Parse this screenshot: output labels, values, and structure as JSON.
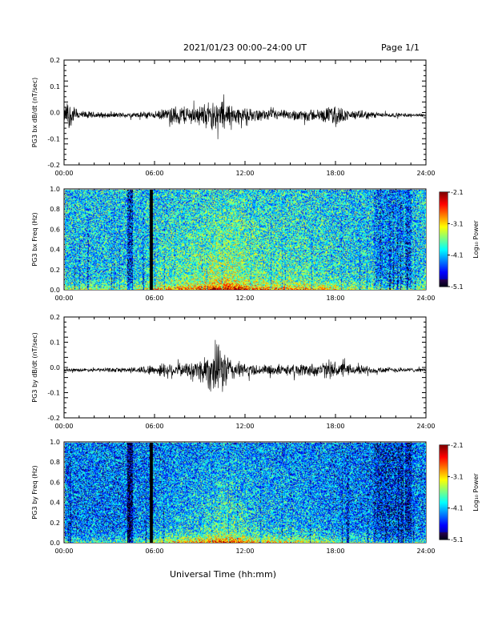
{
  "header": {
    "title": "2021/01/23  00:00–24:00 UT",
    "page": "Page 1/1"
  },
  "x_axis_title": "Universal Time (hh:mm)",
  "chart_data": [
    {
      "type": "line",
      "ylabel": "PG3 bx dB/dt (nT/sec)",
      "xlim": [
        0,
        24
      ],
      "ylim": [
        -0.2,
        0.2
      ],
      "x_ticks": [
        "00:00",
        "06:00",
        "12:00",
        "18:00",
        "24:00"
      ],
      "y_ticks": [
        "-0.2",
        "-0.1",
        "0.0",
        "0.1",
        "0.2"
      ],
      "y_tick_values": [
        -0.2,
        -0.1,
        0.0,
        0.1,
        0.2
      ],
      "envelope": {
        "hour": [
          0,
          0.2,
          1,
          2,
          3,
          4,
          5,
          5.5,
          6,
          6.5,
          7,
          7.5,
          8,
          8.5,
          9,
          9.5,
          10,
          10.5,
          11,
          11.5,
          12,
          13,
          14,
          15,
          16,
          17,
          18,
          18.5,
          19,
          20,
          21,
          22,
          23,
          24
        ],
        "amplitude": [
          0.02,
          0.07,
          0.02,
          0.015,
          0.012,
          0.012,
          0.012,
          0.02,
          0.015,
          0.025,
          0.03,
          0.045,
          0.045,
          0.04,
          0.045,
          0.055,
          0.07,
          0.07,
          0.05,
          0.04,
          0.03,
          0.025,
          0.025,
          0.02,
          0.03,
          0.025,
          0.05,
          0.03,
          0.02,
          0.02,
          0.012,
          0.01,
          0.008,
          0.006
        ]
      }
    },
    {
      "type": "heatmap",
      "ylabel": "PG3 bx Freq (Hz)",
      "xlim": [
        0,
        24
      ],
      "ylim": [
        0,
        1.0
      ],
      "x_ticks": [
        "00:00",
        "06:00",
        "12:00",
        "18:00",
        "24:00"
      ],
      "y_ticks": [
        "0.0",
        "0.2",
        "0.4",
        "0.6",
        "0.8",
        "1.0"
      ],
      "y_tick_values": [
        0,
        0.2,
        0.4,
        0.6,
        0.8,
        1.0
      ],
      "colorbar": {
        "label": "Log₁₀ Power",
        "ticks": [
          "-2.1",
          "-3.1",
          "-4.1",
          "-5.1"
        ],
        "range": [
          -5.1,
          -2.1
        ]
      },
      "data_gap_hours": [
        5.6,
        5.85
      ],
      "base_level": -4.0
    },
    {
      "type": "line",
      "ylabel": "PG3 by dB/dt (nT/sec)",
      "xlim": [
        0,
        24
      ],
      "ylim": [
        -0.2,
        0.2
      ],
      "x_ticks": [
        "00:00",
        "06:00",
        "12:00",
        "18:00",
        "24:00"
      ],
      "y_ticks": [
        "-0.2",
        "-0.1",
        "0.0",
        "0.1",
        "0.2"
      ],
      "y_tick_values": [
        -0.2,
        -0.1,
        0.0,
        0.1,
        0.2
      ],
      "envelope": {
        "hour": [
          0,
          1,
          2,
          3,
          4,
          5,
          5.5,
          6,
          6.5,
          7,
          7.5,
          8,
          8.5,
          9,
          9.5,
          10,
          10.5,
          11,
          11.5,
          12,
          13,
          14,
          15,
          16,
          17,
          18,
          19,
          20,
          21,
          22,
          23,
          24
        ],
        "amplitude": [
          0.008,
          0.008,
          0.008,
          0.01,
          0.012,
          0.015,
          0.025,
          0.02,
          0.035,
          0.04,
          0.03,
          0.03,
          0.04,
          0.055,
          0.09,
          0.11,
          0.11,
          0.06,
          0.04,
          0.03,
          0.025,
          0.025,
          0.025,
          0.03,
          0.035,
          0.04,
          0.025,
          0.02,
          0.015,
          0.012,
          0.01,
          0.008
        ]
      }
    },
    {
      "type": "heatmap",
      "ylabel": "PG3 by Freq (Hz)",
      "xlim": [
        0,
        24
      ],
      "ylim": [
        0,
        1.0
      ],
      "x_ticks": [
        "00:00",
        "06:00",
        "12:00",
        "18:00",
        "24:00"
      ],
      "y_ticks": [
        "0.0",
        "0.2",
        "0.4",
        "0.6",
        "0.8",
        "1.0"
      ],
      "y_tick_values": [
        0,
        0.2,
        0.4,
        0.6,
        0.8,
        1.0
      ],
      "colorbar": {
        "label": "Log₁₀ Power",
        "ticks": [
          "-2.1",
          "-3.1",
          "-4.1",
          "-5.1"
        ],
        "range": [
          -5.1,
          -2.1
        ]
      },
      "data_gap_hours": [
        5.6,
        5.85
      ],
      "base_level": -4.3
    }
  ]
}
